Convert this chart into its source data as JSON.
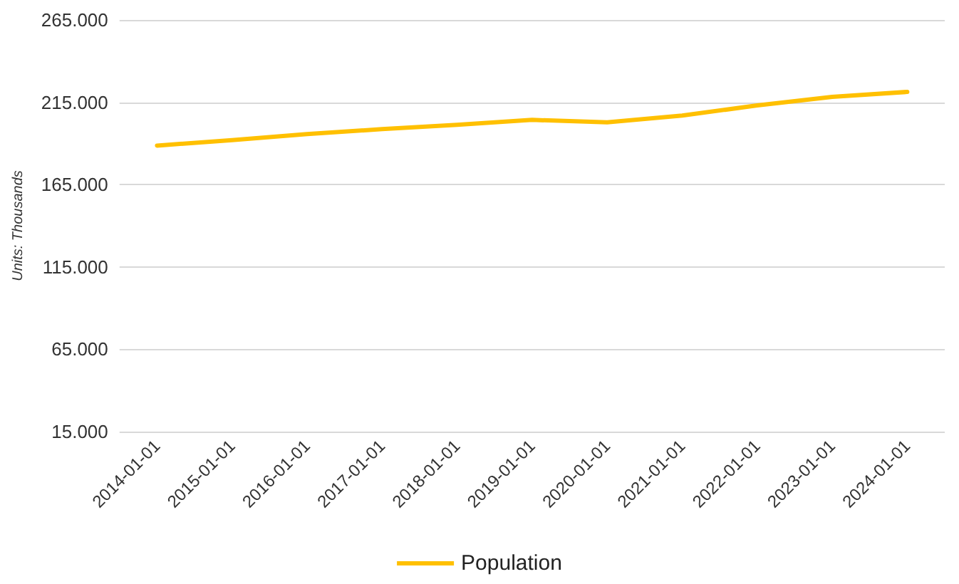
{
  "chart_data": {
    "type": "line",
    "ylabel": "Units: Thousands",
    "categories": [
      "2014-01-01",
      "2015-01-01",
      "2016-01-01",
      "2017-01-01",
      "2018-01-01",
      "2019-01-01",
      "2020-01-01",
      "2021-01-01",
      "2022-01-01",
      "2023-01-01",
      "2024-01-01"
    ],
    "series": [
      {
        "name": "Population",
        "color": "#ffc000",
        "values": [
          188.7,
          192,
          195.7,
          198.7,
          201.3,
          204.3,
          202.8,
          206.9,
          213.1,
          218.3,
          221.3
        ]
      }
    ],
    "ylim": [
      15,
      265
    ],
    "yticks": [
      {
        "value": 15,
        "label": "15.000"
      },
      {
        "value": 65,
        "label": "65.000"
      },
      {
        "value": 115,
        "label": "115.000"
      },
      {
        "value": 165,
        "label": "165.000"
      },
      {
        "value": 215,
        "label": "215.000"
      },
      {
        "value": 265,
        "label": "265.000"
      }
    ],
    "grid": "y",
    "legend": "bottom",
    "marker": "none",
    "line_style": "solid"
  }
}
